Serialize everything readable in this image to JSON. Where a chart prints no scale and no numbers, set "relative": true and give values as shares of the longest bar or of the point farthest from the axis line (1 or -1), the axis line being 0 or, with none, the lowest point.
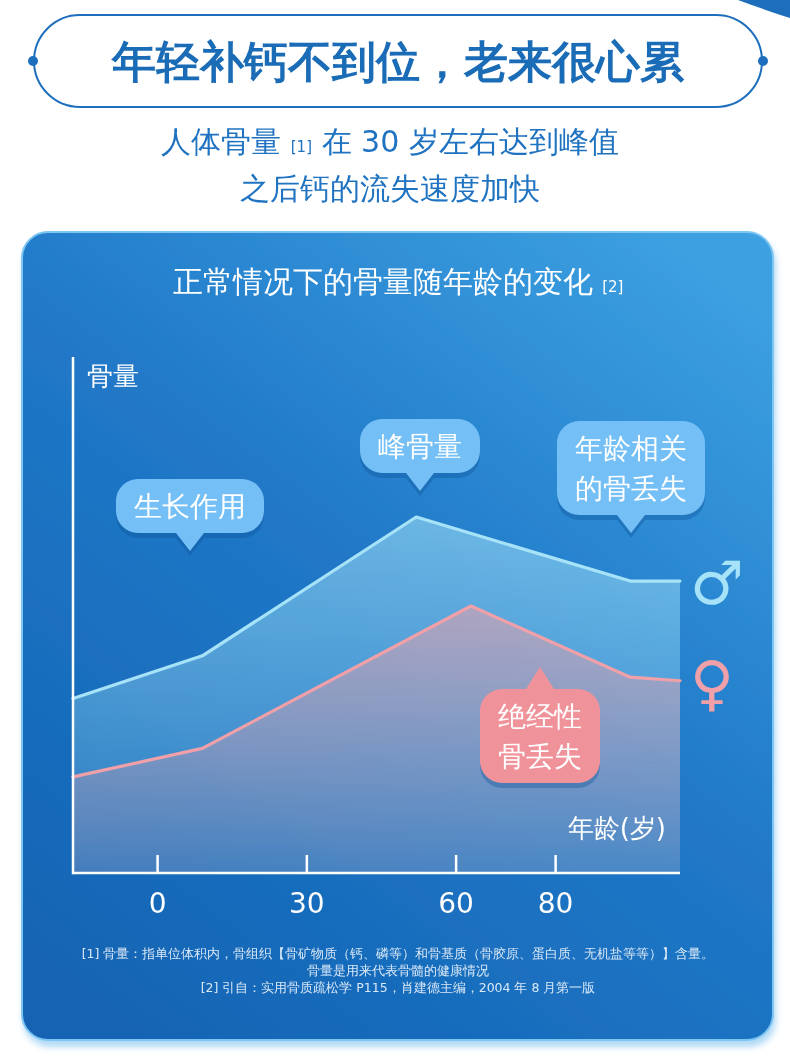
{
  "chart_data": {
    "type": "area",
    "title": "年轻补钙不到位，老来很心累",
    "subtitle": "人体骨量 [1] 在 30 岁左右达到峰值之后钙的流失速度加快",
    "xlabel": "年龄(岁)",
    "ylabel": "骨量",
    "relative": true,
    "xlim": [
      -17,
      105
    ],
    "xticks": [
      0,
      30,
      60,
      80
    ],
    "series": [
      {
        "name": "♂",
        "color": "#a6e3f8",
        "x": [
          -17,
          9,
          52,
          95,
          105
        ],
        "values": [
          0.49,
          0.61,
          1,
          0.82,
          0.82
        ]
      },
      {
        "name": "♀",
        "color": "#f0a0a8",
        "x": [
          -17,
          9,
          63,
          95,
          105
        ],
        "values": [
          0.27,
          0.35,
          0.75,
          0.55,
          0.54
        ]
      }
    ],
    "annotations": [
      "正常情况下的骨量随年龄的变化 [2]",
      "生长作用",
      "峰骨量",
      "年龄相关的骨丢失",
      "绝经性骨丢失",
      "[1] 骨量：指单位体积内，骨组织【骨矿物质（钙、磷等）和骨基质（骨胶原、蛋白质、无机盐等等）】含量。",
      "骨量是用来代表骨髓的健康情况",
      "[2] 引自：实用骨质疏松学 P115，肖建德主编，2004 年 8 月第一版"
    ]
  }
}
